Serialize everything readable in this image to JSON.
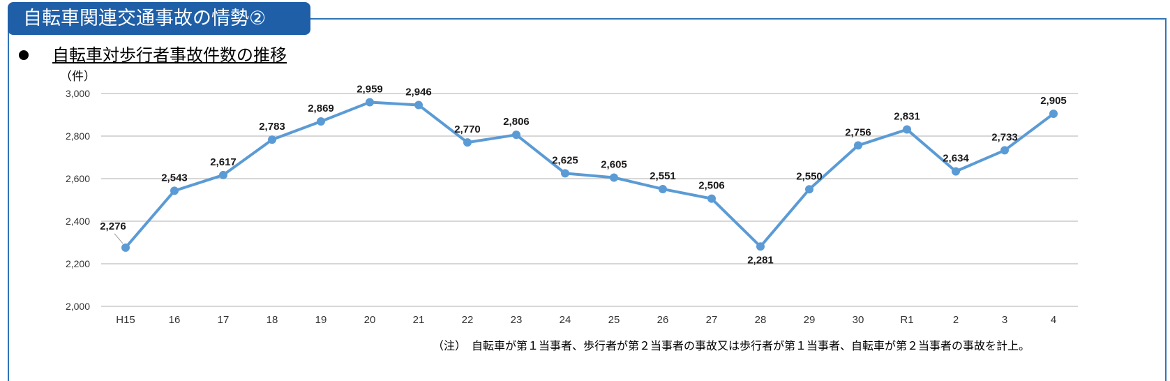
{
  "header": {
    "title": "自転車関連交通事故の情勢②",
    "subtitle": "自転車対歩行者事故件数の推移",
    "unit": "（件）",
    "note": "（注）　自転車が第１当事者、歩行者が第２当事者の事故又は歩行者が第１当事者、自転車が第２当事者の事故を計上。"
  },
  "colors": {
    "title_bg": "#1f5fa8",
    "frame": "#2e75b6",
    "series": "#5b9bd5",
    "grid": "#bfbfbf"
  },
  "chart_data": {
    "type": "line",
    "title": "",
    "xlabel": "",
    "ylabel": "（件）",
    "categories": [
      "H15",
      "16",
      "17",
      "18",
      "19",
      "20",
      "21",
      "22",
      "23",
      "24",
      "25",
      "26",
      "27",
      "28",
      "29",
      "30",
      "R1",
      "2",
      "3",
      "4"
    ],
    "values": [
      2276,
      2543,
      2617,
      2783,
      2869,
      2959,
      2946,
      2770,
      2806,
      2625,
      2605,
      2551,
      2506,
      2281,
      2550,
      2756,
      2831,
      2634,
      2733,
      2905
    ],
    "data_labels": [
      "2,276",
      "2,543",
      "2,617",
      "2,783",
      "2,869",
      "2,959",
      "2,946",
      "2,770",
      "2,806",
      "2,625",
      "2,605",
      "2,551",
      "2,506",
      "2,281",
      "2,550",
      "2,756",
      "2,831",
      "2,634",
      "2,733",
      "2,905"
    ],
    "yticks": [
      2000,
      2200,
      2400,
      2600,
      2800,
      3000
    ],
    "ytick_labels": [
      "2,000",
      "2,200",
      "2,400",
      "2,600",
      "2,800",
      "3,000"
    ],
    "ylim": [
      2000,
      3000
    ],
    "grid": true,
    "legend": "none"
  }
}
